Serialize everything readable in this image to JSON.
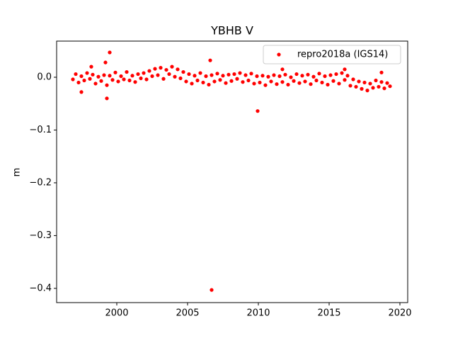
{
  "chart_data": {
    "type": "scatter",
    "title": "YBHB V",
    "ylabel": "m",
    "xlim": [
      1995.75,
      2020.55
    ],
    "ylim": [
      -0.427,
      0.0685
    ],
    "xticks": [
      2000,
      2005,
      2010,
      2015,
      2020
    ],
    "yticks": [
      {
        "value": 0,
        "label": "0.0"
      },
      {
        "value": -0.1,
        "label": "−0.1"
      },
      {
        "value": -0.2,
        "label": "−0.2"
      },
      {
        "value": -0.3,
        "label": "−0.3"
      },
      {
        "value": -0.4,
        "label": "−0.4"
      }
    ],
    "legend": "upper right",
    "series": [
      {
        "name": "repro2018a (IGS14)",
        "color": "#ff0000",
        "x": [
          1996.9,
          1997.1,
          1997.3,
          1997.5,
          1997.7,
          1997.9,
          1998.1,
          1998.3,
          1998.5,
          1998.7,
          1998.9,
          1999.1,
          1999.3,
          1999.5,
          1999.7,
          1999.9,
          2000.1,
          2000.3,
          2000.5,
          2000.7,
          2000.9,
          2001.1,
          2001.3,
          2001.5,
          2001.7,
          2001.9,
          2002.1,
          2002.3,
          2002.5,
          2002.7,
          2002.9,
          2003.1,
          2003.3,
          2003.5,
          2003.7,
          2003.9,
          2004.1,
          2004.3,
          2004.5,
          2004.7,
          2004.9,
          2005.1,
          2005.3,
          2005.5,
          2005.7,
          2005.9,
          2006.1,
          2006.3,
          2006.5,
          2006.7,
          2006.9,
          2007.1,
          2007.3,
          2007.5,
          2007.7,
          2007.9,
          2008.1,
          2008.3,
          2008.5,
          2008.7,
          2008.9,
          2009.1,
          2009.3,
          2009.5,
          2009.7,
          2009.9,
          2010.1,
          2010.3,
          2010.5,
          2010.7,
          2010.9,
          2011.1,
          2011.3,
          2011.5,
          2011.7,
          2011.9,
          2012.1,
          2012.3,
          2012.5,
          2012.7,
          2012.9,
          2013.1,
          2013.3,
          2013.5,
          2013.7,
          2013.9,
          2014.1,
          2014.3,
          2014.5,
          2014.7,
          2014.9,
          2015.1,
          2015.3,
          2015.5,
          2015.7,
          2015.9,
          2016.1,
          2016.3,
          2016.5,
          2016.7,
          2016.9,
          2017.1,
          2017.3,
          2017.5,
          2017.7,
          2017.9,
          2018.1,
          2018.3,
          2018.5,
          2018.7,
          2018.9,
          2019.1,
          2019.3,
          1999.5,
          1999.2,
          1999.3,
          2006.6,
          2006.7,
          2009.95,
          1998.2,
          1997.5,
          2011.7,
          2016.1,
          2018.7
        ],
        "values": [
          -0.004,
          0.006,
          -0.01,
          0.002,
          -0.006,
          0.008,
          -0.003,
          0.005,
          -0.012,
          0.001,
          -0.007,
          0.004,
          -0.015,
          0.003,
          -0.005,
          0.009,
          -0.008,
          0.002,
          -0.004,
          0.01,
          -0.006,
          0.003,
          -0.009,
          0.006,
          -0.002,
          0.008,
          -0.004,
          0.012,
          0.002,
          0.016,
          0.004,
          0.018,
          -0.003,
          0.014,
          0.006,
          0.02,
          0.001,
          0.015,
          -0.002,
          0.01,
          -0.008,
          0.006,
          -0.012,
          0.003,
          -0.006,
          0.008,
          -0.01,
          0.002,
          -0.014,
          0.004,
          -0.008,
          0.007,
          -0.005,
          0.003,
          -0.011,
          0.005,
          -0.007,
          0.006,
          -0.003,
          0.008,
          -0.009,
          0.004,
          -0.006,
          0.007,
          -0.012,
          0.002,
          -0.01,
          0.003,
          -0.015,
          0.001,
          -0.008,
          0.004,
          -0.013,
          0.002,
          -0.009,
          0.005,
          -0.014,
          0.0,
          -0.007,
          0.006,
          -0.011,
          0.003,
          -0.008,
          0.005,
          -0.013,
          0.001,
          -0.006,
          0.007,
          -0.01,
          0.002,
          -0.014,
          0.004,
          -0.007,
          0.006,
          -0.012,
          0.008,
          -0.005,
          0.003,
          -0.016,
          -0.004,
          -0.018,
          -0.008,
          -0.022,
          -0.01,
          -0.025,
          -0.012,
          -0.02,
          -0.006,
          -0.018,
          -0.009,
          -0.021,
          -0.011,
          -0.017,
          0.047,
          0.028,
          -0.04,
          0.032,
          -0.403,
          -0.064,
          0.02,
          -0.028,
          0.015,
          0.015,
          0.009
        ]
      }
    ]
  }
}
